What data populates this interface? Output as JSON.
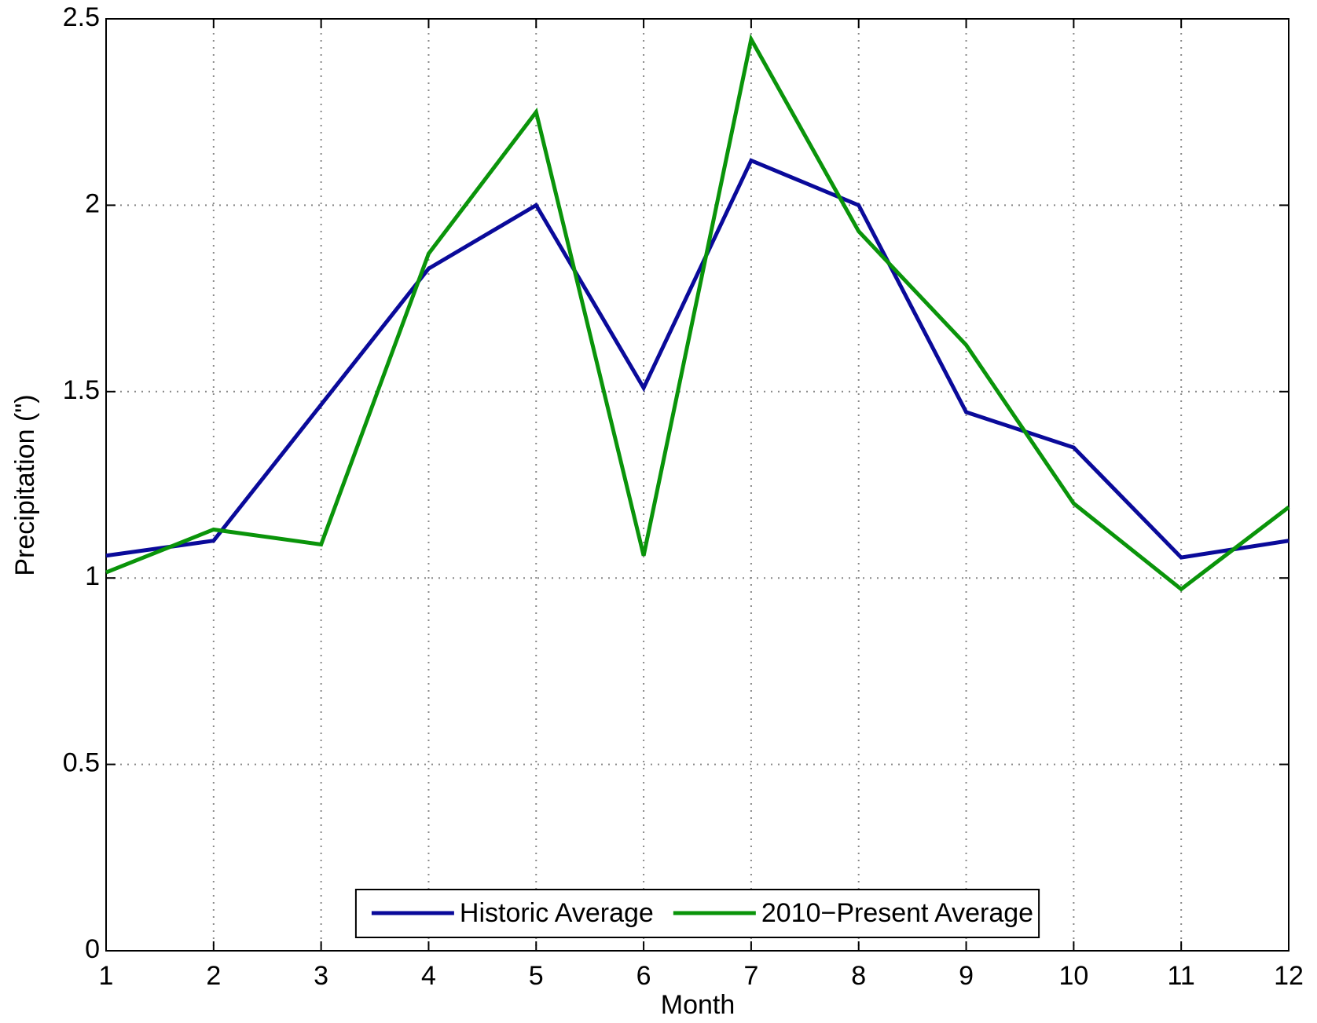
{
  "chart_data": {
    "type": "line",
    "x": [
      1,
      2,
      3,
      4,
      5,
      6,
      7,
      8,
      9,
      10,
      11,
      12
    ],
    "x_label": "Month",
    "y_label": "Precipitation (\")",
    "series": [
      {
        "name": "Historic Average",
        "color": "#0a0a9a",
        "values": [
          1.06,
          1.1,
          1.465,
          1.83,
          2.0,
          1.51,
          2.12,
          2.0,
          1.445,
          1.35,
          1.055,
          1.1
        ]
      },
      {
        "name": "2010−Present Average",
        "color": "#0a940a",
        "values": [
          1.015,
          1.13,
          1.09,
          1.87,
          2.25,
          1.06,
          2.445,
          1.93,
          1.625,
          1.2,
          0.97,
          1.19
        ]
      }
    ],
    "xlim": [
      1,
      12
    ],
    "xticks": [
      1,
      2,
      3,
      4,
      5,
      6,
      7,
      8,
      9,
      10,
      11,
      12
    ],
    "ylim": [
      0,
      2.5
    ],
    "yticks": [
      0,
      0.5,
      1,
      1.5,
      2,
      2.5
    ],
    "grid": true,
    "legend": "bottom"
  }
}
